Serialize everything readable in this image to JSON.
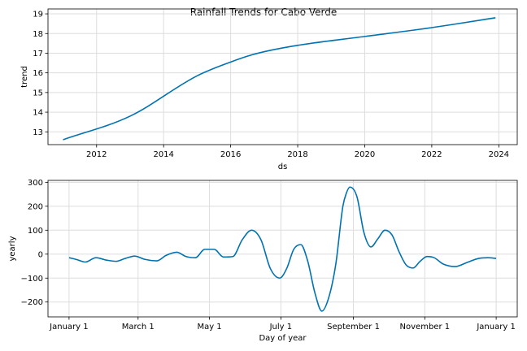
{
  "title": "Rainfall Trends for Cabo Verde",
  "colors": {
    "line": "#0072B2",
    "band": "#9ecae1",
    "grid": "#dddddd"
  },
  "chart_data": [
    {
      "type": "line",
      "name": "trend",
      "xlabel": "ds",
      "ylabel": "trend",
      "x_ticks": [
        "2012",
        "2014",
        "2016",
        "2018",
        "2020",
        "2022",
        "2024"
      ],
      "y_ticks": [
        "13",
        "14",
        "15",
        "16",
        "17",
        "18",
        "19"
      ],
      "xlim": [
        2010.55,
        2024.55
      ],
      "ylim": [
        12.35,
        19.25
      ],
      "grid": true,
      "x": [
        2011.0,
        2013.0,
        2015.0,
        2016.0,
        2016.6,
        2017.2,
        2018.0,
        2020.0,
        2022.0,
        2023.9
      ],
      "y": [
        12.6,
        13.8,
        15.85,
        16.55,
        16.9,
        17.15,
        17.4,
        17.85,
        18.3,
        18.8
      ],
      "band_upper": [
        12.6,
        13.8,
        15.85,
        16.55,
        16.9,
        17.15,
        17.4,
        17.85,
        18.31,
        18.85
      ],
      "band_lower": [
        12.6,
        13.8,
        15.85,
        16.55,
        16.9,
        17.15,
        17.4,
        17.85,
        18.29,
        18.75
      ]
    },
    {
      "type": "line",
      "name": "yearly",
      "xlabel": "Day of year",
      "ylabel": "yearly",
      "x_ticks": [
        "January 1",
        "March 1",
        "May 1",
        "July 1",
        "September 1",
        "November 1",
        "January 1"
      ],
      "x_tick_days": [
        0,
        59,
        120,
        181,
        243,
        304,
        365
      ],
      "y_ticks": [
        "−200",
        "−100",
        "0",
        "100",
        "200",
        "300"
      ],
      "y_tick_values": [
        -200,
        -100,
        0,
        100,
        200,
        300
      ],
      "xlim": [
        -18,
        383
      ],
      "ylim": [
        -262,
        308
      ],
      "grid": true,
      "x": [
        0,
        6,
        14,
        23,
        32,
        40,
        48,
        56,
        65,
        75,
        83,
        92,
        100,
        108,
        116,
        124,
        132,
        140,
        148,
        156,
        164,
        172,
        180,
        186,
        192,
        198,
        204,
        210,
        216,
        222,
        228,
        234,
        237,
        240,
        246,
        252,
        258,
        264,
        270,
        276,
        282,
        288,
        294,
        300,
        306,
        312,
        320,
        330,
        340,
        350,
        358,
        365
      ],
      "y": [
        -15,
        -22,
        -33,
        -15,
        -25,
        -30,
        -18,
        -8,
        -22,
        -28,
        -5,
        8,
        -10,
        -15,
        20,
        20,
        -12,
        -10,
        60,
        100,
        60,
        -60,
        -100,
        -60,
        20,
        40,
        -30,
        -160,
        -238,
        -180,
        -40,
        200,
        255,
        280,
        240,
        90,
        30,
        65,
        100,
        80,
        10,
        -45,
        -58,
        -30,
        -10,
        -15,
        -42,
        -52,
        -35,
        -18,
        -15,
        -18
      ]
    }
  ]
}
